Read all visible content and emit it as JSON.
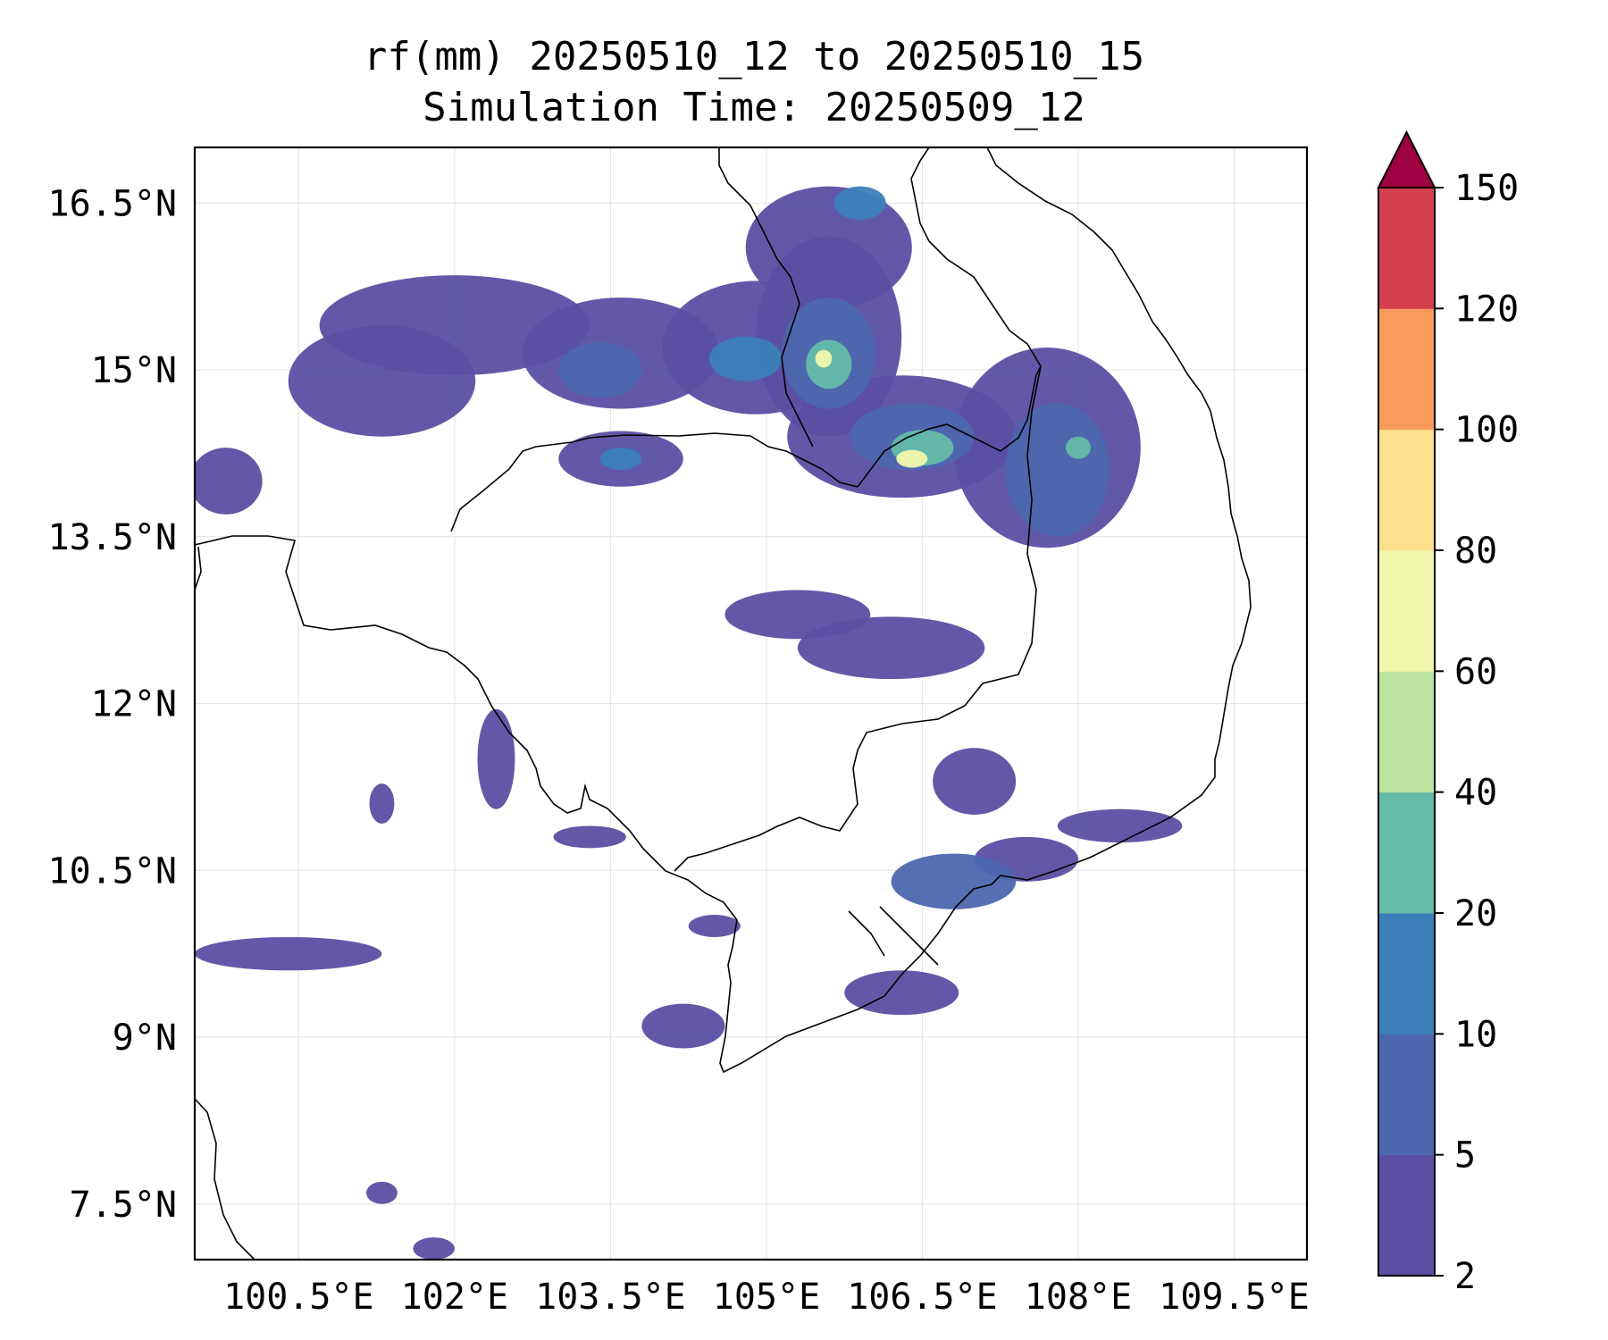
{
  "title": {
    "line1": "rf(mm) 20250510_12 to 20250510_15",
    "line2": "Simulation Time: 20250509_12"
  },
  "map": {
    "lon_range": [
      99.5,
      110.2
    ],
    "lat_range": [
      7.0,
      17.0
    ],
    "xticks": [
      {
        "value": 100.5,
        "label": "100.5°E"
      },
      {
        "value": 102,
        "label": "102°E"
      },
      {
        "value": 103.5,
        "label": "103.5°E"
      },
      {
        "value": 105,
        "label": "105°E"
      },
      {
        "value": 106.5,
        "label": "106.5°E"
      },
      {
        "value": 108,
        "label": "108°E"
      },
      {
        "value": 109.5,
        "label": "109.5°E"
      }
    ],
    "yticks": [
      {
        "value": 7.5,
        "label": "7.5°N"
      },
      {
        "value": 9,
        "label": "9°N"
      },
      {
        "value": 10.5,
        "label": "10.5°N"
      },
      {
        "value": 12,
        "label": "12°N"
      },
      {
        "value": 13.5,
        "label": "13.5°N"
      },
      {
        "value": 15,
        "label": "15°N"
      },
      {
        "value": 16.5,
        "label": "16.5°N"
      }
    ],
    "grid": true
  },
  "colorbar": {
    "levels": [
      2,
      5,
      10,
      20,
      40,
      60,
      80,
      100,
      120,
      150
    ],
    "labels": [
      "2",
      "5",
      "10",
      "20",
      "40",
      "60",
      "80",
      "100",
      "120",
      "150"
    ],
    "colors": [
      "#5b4fa3",
      "#4d67ae",
      "#3b80b9",
      "#64bca9",
      "#bde3a0",
      "#f0f7ad",
      "#fbe08d",
      "#f99c5b",
      "#d53e4f"
    ],
    "extend_color": "#9e0142"
  },
  "rain_cells": [
    {
      "lon": 102.0,
      "lat": 15.4,
      "rx": 1.3,
      "ry": 0.45,
      "level": 0
    },
    {
      "lon": 101.3,
      "lat": 14.9,
      "rx": 0.9,
      "ry": 0.5,
      "level": 0
    },
    {
      "lon": 103.6,
      "lat": 15.15,
      "rx": 0.95,
      "ry": 0.5,
      "level": 0
    },
    {
      "lon": 103.4,
      "lat": 15.0,
      "rx": 0.4,
      "ry": 0.25,
      "level": 1
    },
    {
      "lon": 104.9,
      "lat": 15.2,
      "rx": 0.9,
      "ry": 0.6,
      "level": 0
    },
    {
      "lon": 104.8,
      "lat": 15.1,
      "rx": 0.35,
      "ry": 0.2,
      "level": 2
    },
    {
      "lon": 105.6,
      "lat": 15.3,
      "rx": 0.7,
      "ry": 0.9,
      "level": 0
    },
    {
      "lon": 105.6,
      "lat": 15.15,
      "rx": 0.45,
      "ry": 0.5,
      "level": 1
    },
    {
      "lon": 105.6,
      "lat": 15.05,
      "rx": 0.22,
      "ry": 0.22,
      "level": 3
    },
    {
      "lon": 105.55,
      "lat": 15.1,
      "rx": 0.08,
      "ry": 0.08,
      "level": 5
    },
    {
      "lon": 105.6,
      "lat": 16.1,
      "rx": 0.8,
      "ry": 0.55,
      "level": 0
    },
    {
      "lon": 105.9,
      "lat": 16.5,
      "rx": 0.25,
      "ry": 0.15,
      "level": 2
    },
    {
      "lon": 106.3,
      "lat": 14.4,
      "rx": 1.1,
      "ry": 0.55,
      "level": 0
    },
    {
      "lon": 106.4,
      "lat": 14.4,
      "rx": 0.6,
      "ry": 0.3,
      "level": 1
    },
    {
      "lon": 106.5,
      "lat": 14.3,
      "rx": 0.3,
      "ry": 0.16,
      "level": 3
    },
    {
      "lon": 106.4,
      "lat": 14.2,
      "rx": 0.15,
      "ry": 0.08,
      "level": 5
    },
    {
      "lon": 107.7,
      "lat": 14.3,
      "rx": 0.9,
      "ry": 0.9,
      "level": 0
    },
    {
      "lon": 107.8,
      "lat": 14.1,
      "rx": 0.5,
      "ry": 0.6,
      "level": 1
    },
    {
      "lon": 108.0,
      "lat": 14.3,
      "rx": 0.12,
      "ry": 0.1,
      "level": 3
    },
    {
      "lon": 103.6,
      "lat": 14.2,
      "rx": 0.6,
      "ry": 0.25,
      "level": 0
    },
    {
      "lon": 103.6,
      "lat": 14.2,
      "rx": 0.2,
      "ry": 0.1,
      "level": 2
    },
    {
      "lon": 99.8,
      "lat": 14.0,
      "rx": 0.35,
      "ry": 0.3,
      "level": 0
    },
    {
      "lon": 105.3,
      "lat": 12.8,
      "rx": 0.7,
      "ry": 0.22,
      "level": 0
    },
    {
      "lon": 106.2,
      "lat": 12.5,
      "rx": 0.9,
      "ry": 0.28,
      "level": 0
    },
    {
      "lon": 107.0,
      "lat": 11.3,
      "rx": 0.4,
      "ry": 0.3,
      "level": 0
    },
    {
      "lon": 106.8,
      "lat": 10.4,
      "rx": 0.6,
      "ry": 0.25,
      "level": 1
    },
    {
      "lon": 107.5,
      "lat": 10.6,
      "rx": 0.5,
      "ry": 0.2,
      "level": 0
    },
    {
      "lon": 108.4,
      "lat": 10.9,
      "rx": 0.6,
      "ry": 0.15,
      "level": 0
    },
    {
      "lon": 100.4,
      "lat": 9.75,
      "rx": 0.9,
      "ry": 0.15,
      "level": 0
    },
    {
      "lon": 104.2,
      "lat": 9.1,
      "rx": 0.4,
      "ry": 0.2,
      "level": 0
    },
    {
      "lon": 106.3,
      "lat": 9.4,
      "rx": 0.55,
      "ry": 0.2,
      "level": 0
    },
    {
      "lon": 101.3,
      "lat": 11.1,
      "rx": 0.12,
      "ry": 0.18,
      "level": 0
    },
    {
      "lon": 102.4,
      "lat": 11.5,
      "rx": 0.18,
      "ry": 0.45,
      "level": 0
    },
    {
      "lon": 103.3,
      "lat": 10.8,
      "rx": 0.35,
      "ry": 0.1,
      "level": 0
    },
    {
      "lon": 104.5,
      "lat": 10.0,
      "rx": 0.25,
      "ry": 0.1,
      "level": 0
    },
    {
      "lon": 101.3,
      "lat": 7.6,
      "rx": 0.15,
      "ry": 0.1,
      "level": 0
    },
    {
      "lon": 101.8,
      "lat": 7.1,
      "rx": 0.2,
      "ry": 0.1,
      "level": 0
    }
  ]
}
